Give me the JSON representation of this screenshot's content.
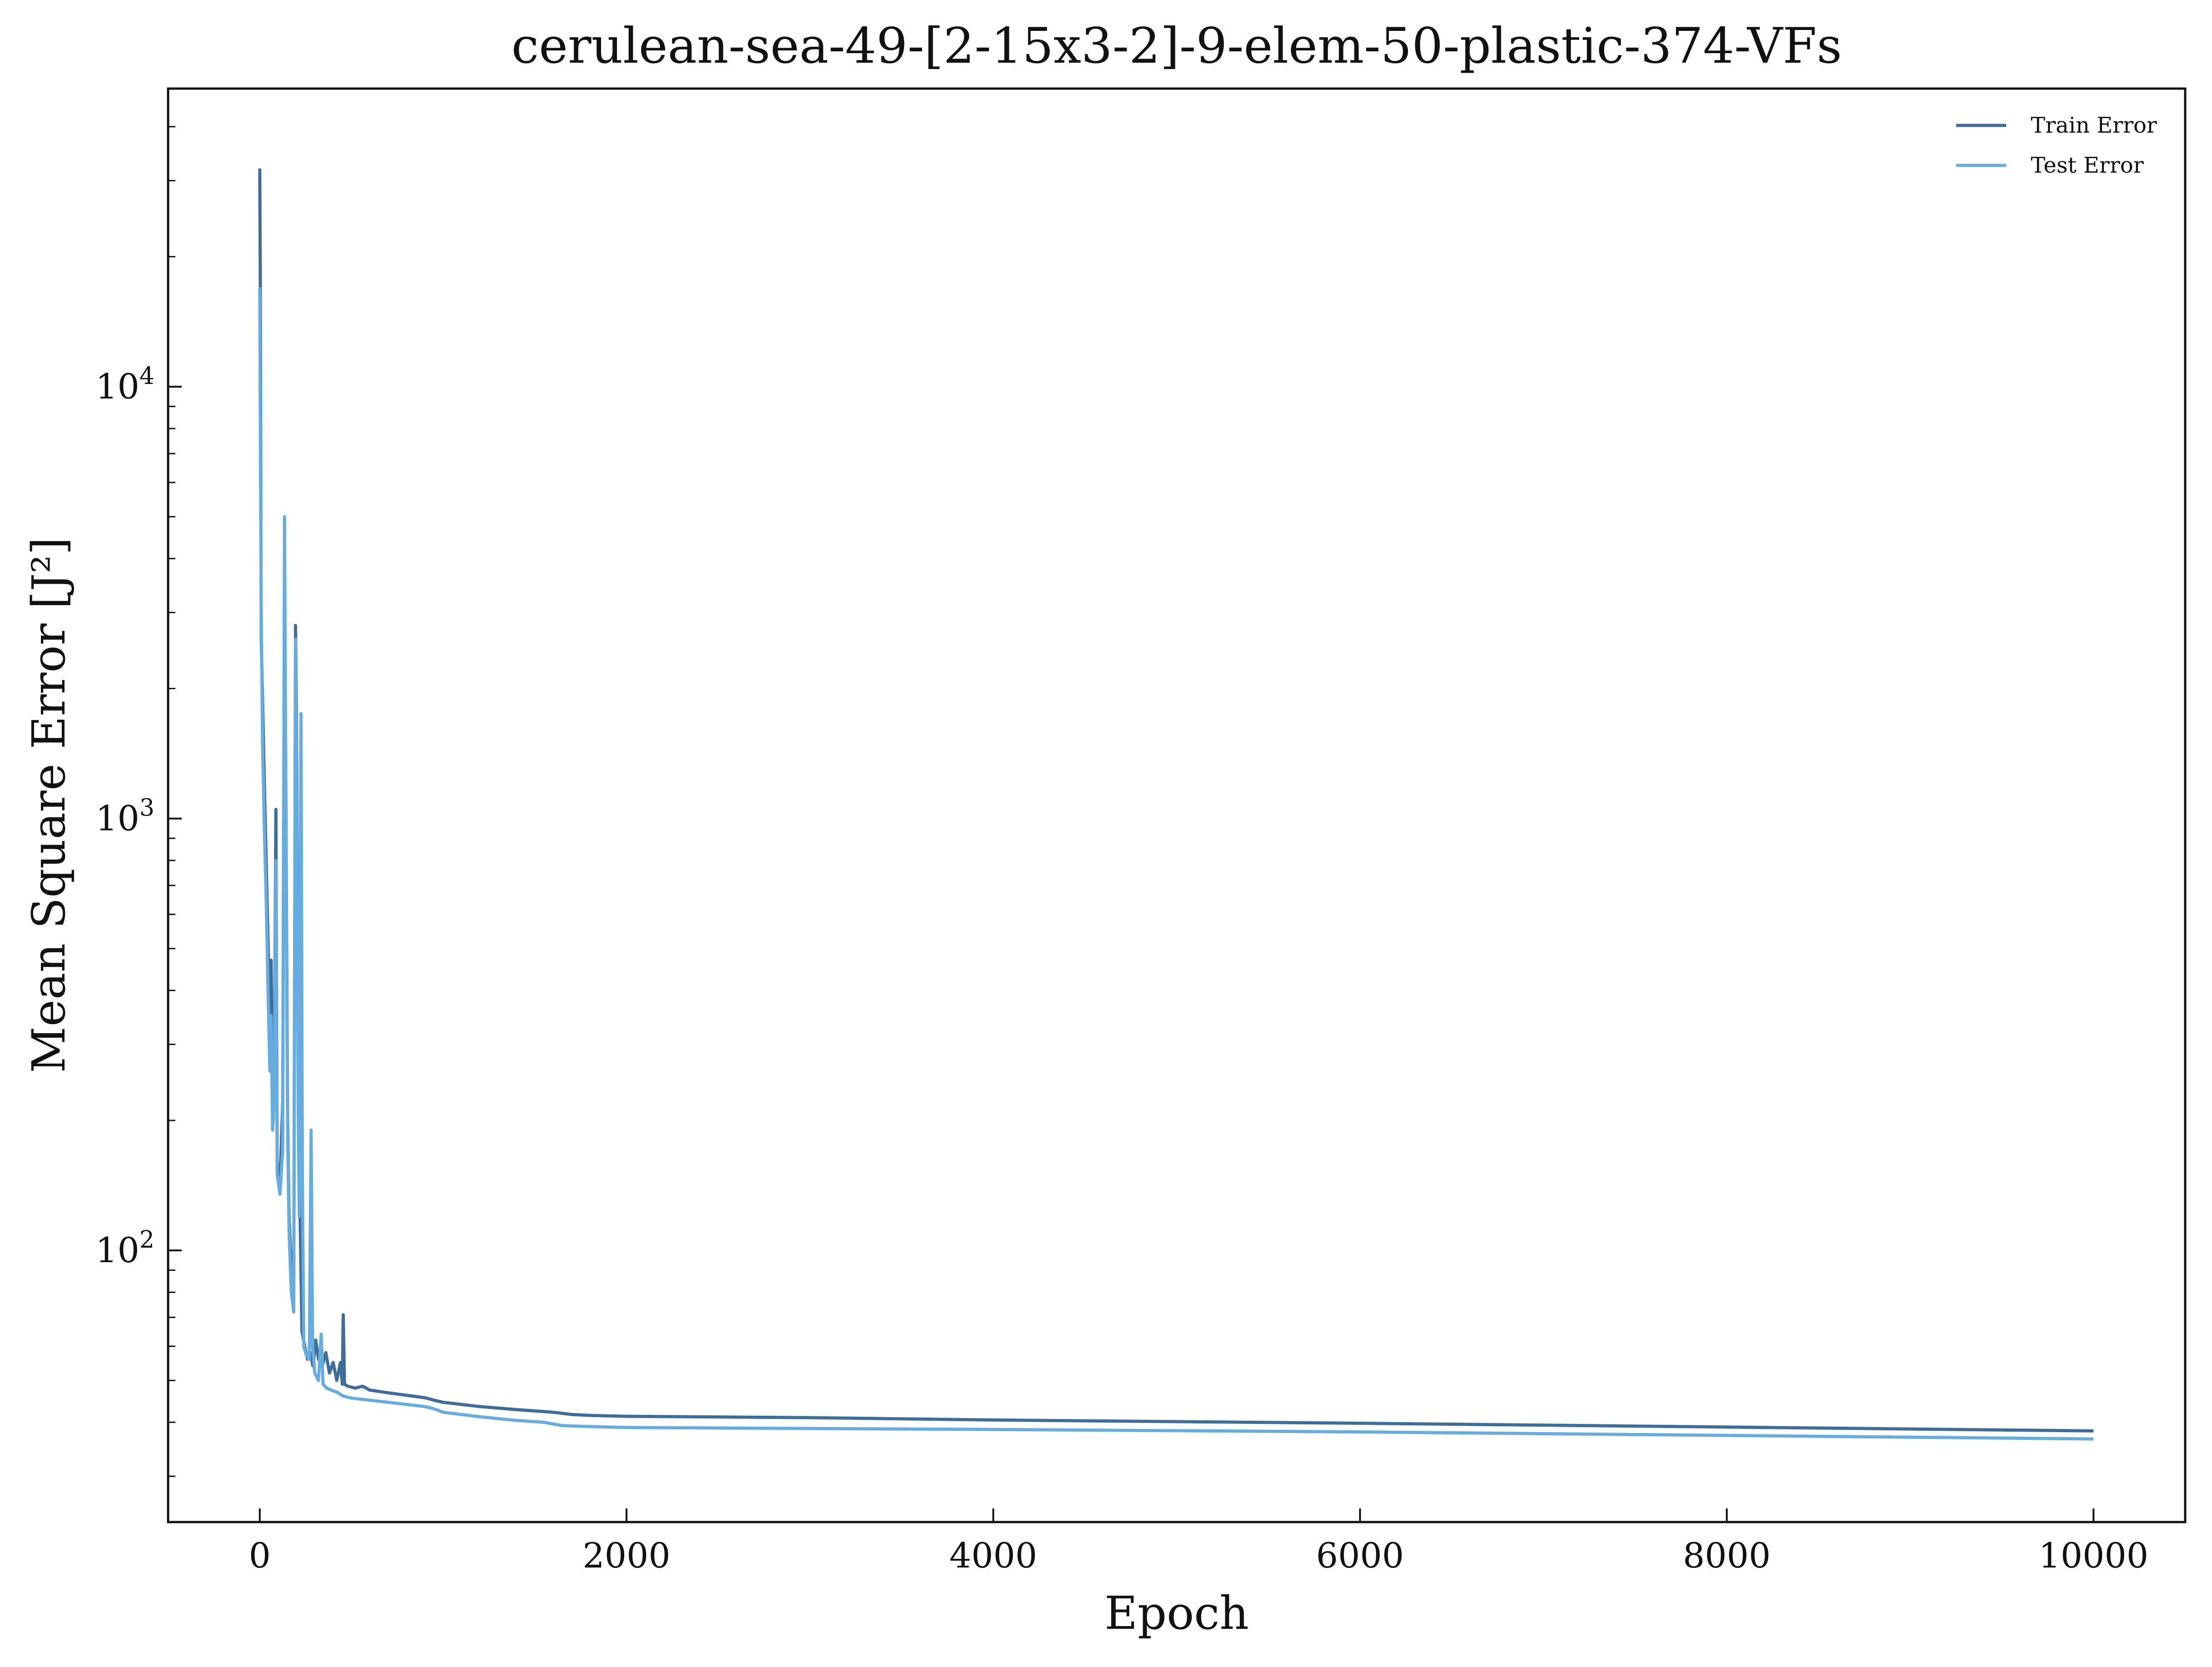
{
  "chart_data": {
    "type": "line",
    "title": "cerulean-sea-49-[2-15x3-2]-9-elem-50-plastic-374-VFs",
    "xlabel": "Epoch",
    "ylabel": "Mean Square Error [J²]",
    "yscale": "log",
    "xlim": [
      -500,
      10500
    ],
    "ylim": [
      23.5,
      49000
    ],
    "grid": false,
    "legend_position": "top-right",
    "x_ticks": [
      {
        "value": 0,
        "label": "0"
      },
      {
        "value": 2000,
        "label": "2000"
      },
      {
        "value": 4000,
        "label": "4000"
      },
      {
        "value": 6000,
        "label": "6000"
      },
      {
        "value": 8000,
        "label": "8000"
      },
      {
        "value": 10000,
        "label": "10000"
      }
    ],
    "y_ticks": [
      {
        "value": 100,
        "base": "10",
        "exp": "2"
      },
      {
        "value": 1000,
        "base": "10",
        "exp": "3"
      },
      {
        "value": 10000,
        "base": "10",
        "exp": "4"
      }
    ],
    "series": [
      {
        "name": "Train Error",
        "color": "#3f6d99",
        "points": [
          [
            0,
            32000
          ],
          [
            3,
            17000
          ],
          [
            8,
            2600
          ],
          [
            15,
            1900
          ],
          [
            25,
            1200
          ],
          [
            35,
            800
          ],
          [
            45,
            520
          ],
          [
            55,
            320
          ],
          [
            62,
            470
          ],
          [
            70,
            210
          ],
          [
            80,
            280
          ],
          [
            88,
            1050
          ],
          [
            95,
            160
          ],
          [
            110,
            140
          ],
          [
            125,
            220
          ],
          [
            135,
            4200
          ],
          [
            145,
            700
          ],
          [
            152,
            200
          ],
          [
            160,
            120
          ],
          [
            172,
            90
          ],
          [
            185,
            75
          ],
          [
            195,
            2800
          ],
          [
            200,
            1800
          ],
          [
            210,
            300
          ],
          [
            220,
            120
          ],
          [
            230,
            65
          ],
          [
            245,
            60
          ],
          [
            260,
            56
          ],
          [
            275,
            58
          ],
          [
            290,
            54
          ],
          [
            305,
            62
          ],
          [
            320,
            56
          ],
          [
            340,
            54
          ],
          [
            360,
            58
          ],
          [
            380,
            52
          ],
          [
            400,
            55
          ],
          [
            420,
            50
          ],
          [
            440,
            55
          ],
          [
            450,
            49
          ],
          [
            455,
            71
          ],
          [
            462,
            49
          ],
          [
            480,
            48.5
          ],
          [
            520,
            48
          ],
          [
            560,
            48.5
          ],
          [
            600,
            47.5
          ],
          [
            700,
            46.8
          ],
          [
            800,
            46.2
          ],
          [
            900,
            45.6
          ],
          [
            950,
            45
          ],
          [
            1000,
            44.5
          ],
          [
            1200,
            43.5
          ],
          [
            1400,
            42.8
          ],
          [
            1600,
            42.2
          ],
          [
            1700,
            41.7
          ],
          [
            1800,
            41.5
          ],
          [
            2000,
            41.3
          ],
          [
            3000,
            41.0
          ],
          [
            4000,
            40.5
          ],
          [
            6000,
            39.8
          ],
          [
            8000,
            39.0
          ],
          [
            10000,
            38.2
          ]
        ]
      },
      {
        "name": "Test Error",
        "color": "#67acde",
        "points": [
          [
            0,
            17000
          ],
          [
            3,
            8000
          ],
          [
            8,
            3000
          ],
          [
            15,
            1500
          ],
          [
            25,
            950
          ],
          [
            35,
            650
          ],
          [
            45,
            400
          ],
          [
            55,
            260
          ],
          [
            62,
            350
          ],
          [
            70,
            190
          ],
          [
            80,
            230
          ],
          [
            88,
            800
          ],
          [
            95,
            150
          ],
          [
            110,
            135
          ],
          [
            125,
            170
          ],
          [
            135,
            5000
          ],
          [
            145,
            600
          ],
          [
            152,
            180
          ],
          [
            160,
            110
          ],
          [
            172,
            80
          ],
          [
            185,
            72
          ],
          [
            195,
            2600
          ],
          [
            200,
            1400
          ],
          [
            210,
            200
          ],
          [
            215,
            120
          ],
          [
            225,
            1750
          ],
          [
            232,
            150
          ],
          [
            240,
            60
          ],
          [
            255,
            57
          ],
          [
            270,
            56
          ],
          [
            280,
            190
          ],
          [
            288,
            60
          ],
          [
            300,
            52
          ],
          [
            320,
            50
          ],
          [
            335,
            64
          ],
          [
            345,
            49
          ],
          [
            365,
            48
          ],
          [
            390,
            47.5
          ],
          [
            420,
            47
          ],
          [
            455,
            46
          ],
          [
            500,
            45.5
          ],
          [
            600,
            45
          ],
          [
            700,
            44.5
          ],
          [
            800,
            44
          ],
          [
            900,
            43.5
          ],
          [
            950,
            43
          ],
          [
            1000,
            42.2
          ],
          [
            1200,
            41.2
          ],
          [
            1400,
            40.4
          ],
          [
            1550,
            40
          ],
          [
            1650,
            39.3
          ],
          [
            1800,
            39.1
          ],
          [
            2000,
            38.9
          ],
          [
            4000,
            38.5
          ],
          [
            6000,
            38
          ],
          [
            8000,
            37.3
          ],
          [
            10000,
            36.6
          ]
        ]
      }
    ]
  }
}
